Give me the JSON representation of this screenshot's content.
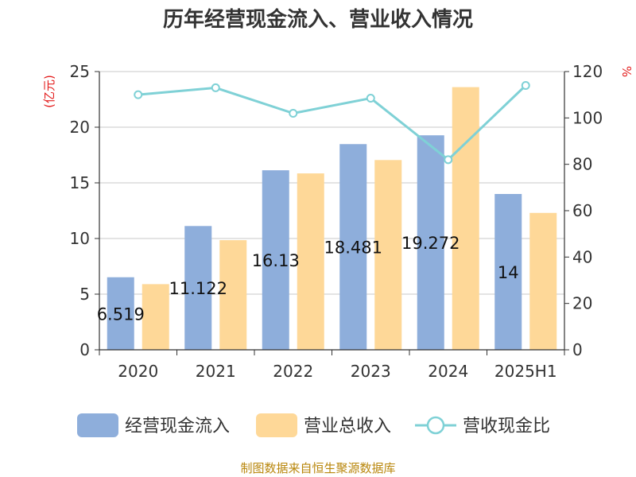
{
  "chart_data": {
    "type": "bar",
    "title": "历年经营现金流入、营业收入情况",
    "categories": [
      "2020",
      "2021",
      "2022",
      "2023",
      "2024",
      "2025H1"
    ],
    "y_left": {
      "unit": "(亿元)",
      "ylim": [
        0,
        25
      ],
      "ticks": [
        "0",
        "5",
        "10",
        "15",
        "20",
        "25"
      ]
    },
    "y_right": {
      "unit": "%",
      "ylim": [
        0,
        120
      ],
      "ticks": [
        "0",
        "20",
        "40",
        "60",
        "80",
        "100",
        "120"
      ]
    },
    "series": [
      {
        "name": "经营现金流入",
        "kind": "bar",
        "axis": "left",
        "color": "#8eaedb",
        "values": [
          6.519,
          11.122,
          16.13,
          18.481,
          19.272,
          14
        ],
        "labels": [
          "6.519",
          "11.122",
          "16.13",
          "18.481",
          "19.272",
          "14"
        ]
      },
      {
        "name": "营业总收入",
        "kind": "bar",
        "axis": "left",
        "color": "#fed898",
        "values": [
          5.9,
          9.85,
          15.85,
          17.05,
          23.6,
          12.3
        ]
      },
      {
        "name": "营收现金比",
        "kind": "line",
        "axis": "right",
        "color": "#7fd1d6",
        "values": [
          110,
          113,
          102,
          108.5,
          82,
          114
        ]
      }
    ],
    "grid": true,
    "legend_position": "bottom"
  },
  "source": "制图数据来自恒生聚源数据库"
}
